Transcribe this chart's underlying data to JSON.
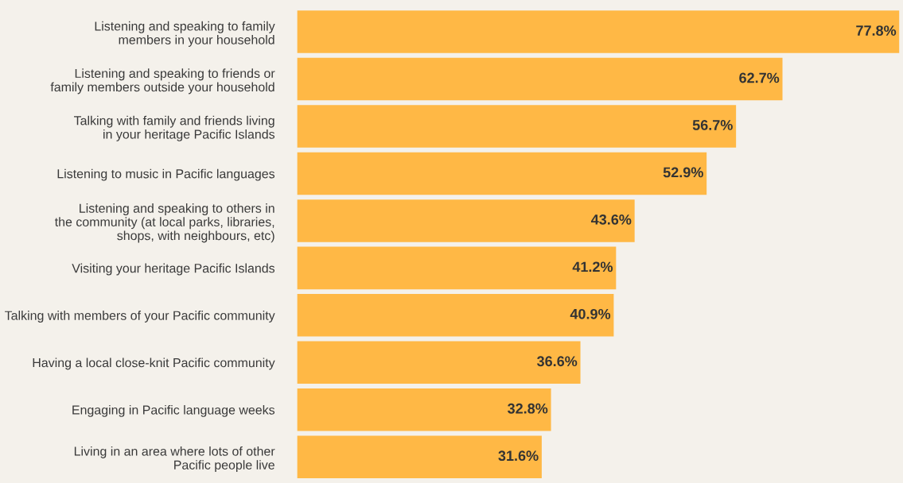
{
  "chart_data": {
    "type": "bar",
    "orientation": "horizontal",
    "categories": [
      "Listening and speaking to family\nmembers in your household",
      "Listening and speaking to friends or\nfamily members outside your household",
      "Talking with family and friends living\nin your heritage Pacific Islands",
      "Listening to music in Pacific languages",
      "Listening and speaking to others in\nthe community (at local parks, libraries,\nshops, with neighbours, etc)",
      "Visiting your heritage Pacific Islands",
      "Talking with members of your Pacific community",
      "Having a local close-knit Pacific community",
      "Engaging in Pacific language weeks",
      "Living in an area where lots of other\nPacific people live"
    ],
    "values": [
      77.8,
      62.7,
      56.7,
      52.9,
      43.6,
      41.2,
      40.9,
      36.6,
      32.8,
      31.6
    ],
    "value_labels": [
      "77.8%",
      "62.7%",
      "56.7%",
      "52.9%",
      "43.6%",
      "41.2%",
      "40.9%",
      "36.6%",
      "32.8%",
      "31.6%"
    ],
    "color": "#ffb845",
    "grid": false,
    "legend": false,
    "tick_labels": "y"
  }
}
